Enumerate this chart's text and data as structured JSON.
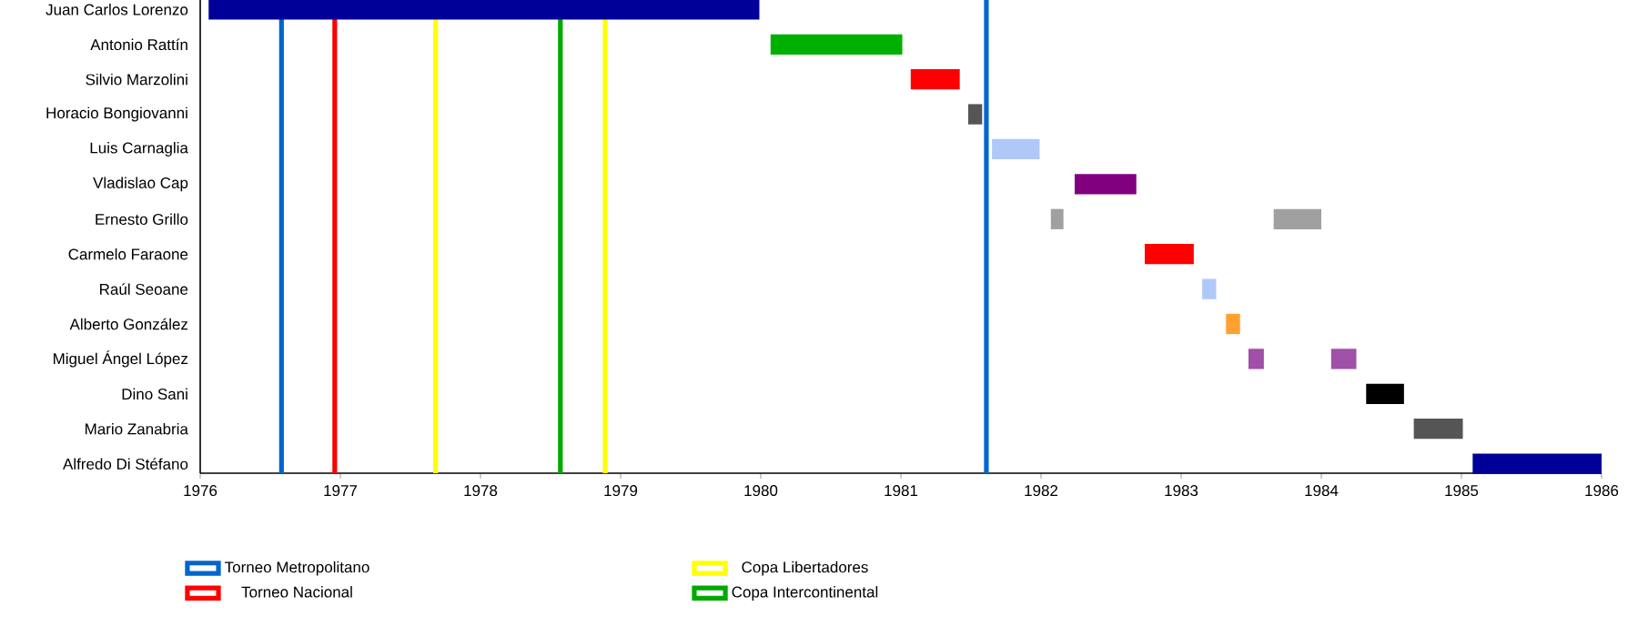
{
  "chart_data": {
    "type": "bar",
    "orientation": "horizontal",
    "categories": [
      "Juan Carlos Lorenzo",
      "Antonio Rattín",
      "Silvio Marzolini",
      "Horacio Bongiovanni",
      "Luis Carnaglia",
      "Vladislao Cap",
      "Ernesto Grillo",
      "Carmelo Faraone",
      "Raúl Seoane",
      "Alberto González",
      "Miguel Ángel López",
      "Dino Sani",
      "Mario Zanabria",
      "Alfredo Di Stéfano"
    ],
    "series": [
      {
        "base": [
          1976.06,
          1980.07,
          1981.07,
          1981.48,
          1981.65,
          1982.24,
          1982.07,
          1982.74,
          1983.15,
          1983.32,
          1983.48,
          1984.32,
          1984.66,
          1985.08
        ],
        "values": [
          3.93,
          0.94,
          0.35,
          0.1,
          0.34,
          0.44,
          0.09,
          0.35,
          0.1,
          0.1,
          0.11,
          0.27,
          0.35,
          0.92
        ],
        "colors": [
          "#000099",
          "#00b000",
          "#ff0000",
          "#555555",
          "#b0c8f8",
          "#800080",
          "#a0a0a0",
          "#ff0000",
          "#b0c8f8",
          "#ffa030",
          "#a050a8",
          "#000000",
          "#555555",
          "#000099"
        ]
      },
      {
        "base": [
          null,
          null,
          null,
          null,
          null,
          null,
          1983.66,
          null,
          null,
          null,
          1984.07,
          null,
          null,
          null
        ],
        "values": [
          null,
          null,
          null,
          null,
          null,
          null,
          0.34,
          null,
          null,
          null,
          0.18,
          null,
          null,
          null
        ],
        "colors": [
          null,
          null,
          null,
          null,
          null,
          null,
          "#a0a0a0",
          null,
          null,
          null,
          "#a050a8",
          null,
          null,
          null
        ]
      }
    ],
    "xlim": [
      1976,
      1986
    ],
    "xticks": [
      1976,
      1977,
      1978,
      1979,
      1980,
      1981,
      1982,
      1983,
      1984,
      1985,
      1986
    ],
    "ref_lines": [
      {
        "axis": "x",
        "value": 1976.58,
        "label": "Torneo Metropolitano",
        "color": "#0066cc"
      },
      {
        "axis": "x",
        "value": 1976.96,
        "label": "Torneo Nacional",
        "color": "#ff0000"
      },
      {
        "axis": "x",
        "value": 1977.68,
        "label": "Copa Libertadores",
        "color": "#ffff00"
      },
      {
        "axis": "x",
        "value": 1978.57,
        "label": "Copa Intercontinental",
        "color": "#00aa00"
      },
      {
        "axis": "x",
        "value": 1978.89,
        "color": "#ffff00"
      },
      {
        "axis": "x",
        "value": 1981.61,
        "color": "#0066cc"
      }
    ],
    "legend": "bottom"
  }
}
